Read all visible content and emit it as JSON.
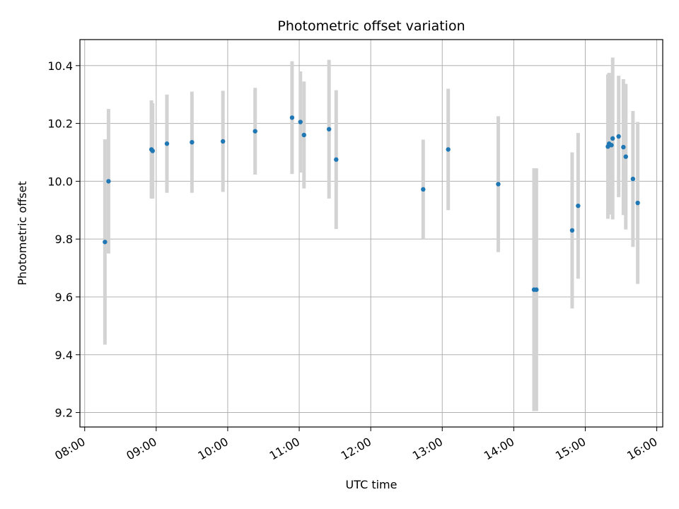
{
  "chart_data": {
    "type": "scatter",
    "title": "Photometric offset variation",
    "xlabel": "UTC time",
    "ylabel": "Photometric offset",
    "x_tick_labels": [
      "08:00",
      "09:00",
      "10:00",
      "11:00",
      "12:00",
      "13:00",
      "14:00",
      "15:00",
      "16:00"
    ],
    "y_tick_labels": [
      "9.2",
      "9.4",
      "9.6",
      "9.8",
      "10.0",
      "10.2",
      "10.4"
    ],
    "xlim": [
      "07:56",
      "16:05"
    ],
    "ylim": [
      9.15,
      10.49
    ],
    "grid": true,
    "point_color": "#1f77b4",
    "errorbar_color": "#d3d3d3",
    "points": [
      {
        "x": "08:17",
        "y": 9.79,
        "err": 0.355
      },
      {
        "x": "08:20",
        "y": 10.0,
        "err": 0.25
      },
      {
        "x": "08:56",
        "y": 10.11,
        "err": 0.17
      },
      {
        "x": "08:57",
        "y": 10.105,
        "err": 0.165
      },
      {
        "x": "09:09",
        "y": 10.13,
        "err": 0.17
      },
      {
        "x": "09:30",
        "y": 10.135,
        "err": 0.175
      },
      {
        "x": "09:56",
        "y": 10.138,
        "err": 0.175
      },
      {
        "x": "10:23",
        "y": 10.173,
        "err": 0.15
      },
      {
        "x": "10:54",
        "y": 10.22,
        "err": 0.195
      },
      {
        "x": "11:01",
        "y": 10.205,
        "err": 0.175
      },
      {
        "x": "11:04",
        "y": 10.16,
        "err": 0.185
      },
      {
        "x": "11:25",
        "y": 10.18,
        "err": 0.24
      },
      {
        "x": "11:31",
        "y": 10.075,
        "err": 0.24
      },
      {
        "x": "12:44",
        "y": 9.972,
        "err": 0.172
      },
      {
        "x": "13:05",
        "y": 10.11,
        "err": 0.21
      },
      {
        "x": "13:47",
        "y": 9.99,
        "err": 0.235
      },
      {
        "x": "14:17",
        "y": 9.625,
        "err": 0.42
      },
      {
        "x": "14:19",
        "y": 9.625,
        "err": 0.42
      },
      {
        "x": "14:49",
        "y": 9.83,
        "err": 0.27
      },
      {
        "x": "14:54",
        "y": 9.915,
        "err": 0.252
      },
      {
        "x": "15:19",
        "y": 10.12,
        "err": 0.25
      },
      {
        "x": "15:20",
        "y": 10.13,
        "err": 0.245
      },
      {
        "x": "15:22",
        "y": 10.125,
        "err": 0.24
      },
      {
        "x": "15:23",
        "y": 10.148,
        "err": 0.28
      },
      {
        "x": "15:28",
        "y": 10.155,
        "err": 0.21
      },
      {
        "x": "15:32",
        "y": 10.118,
        "err": 0.235
      },
      {
        "x": "15:34",
        "y": 10.085,
        "err": 0.252
      },
      {
        "x": "15:40",
        "y": 10.008,
        "err": 0.235
      },
      {
        "x": "15:44",
        "y": 9.925,
        "err": 0.28
      }
    ]
  }
}
